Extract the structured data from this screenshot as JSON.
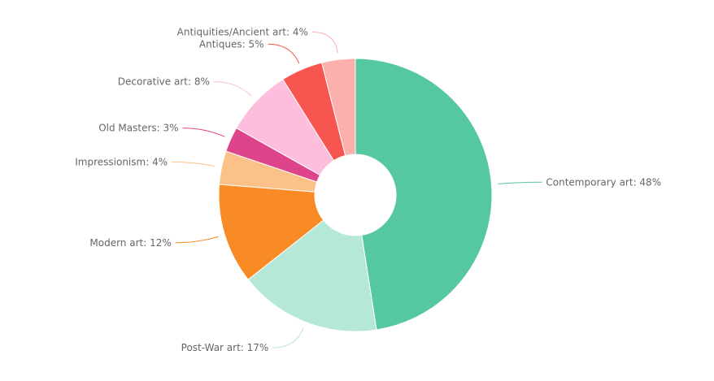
{
  "chart_data": {
    "type": "pie",
    "variant": "donut",
    "title": "",
    "start_angle_deg": 0,
    "direction": "clockwise",
    "slices": [
      {
        "name": "Contemporary art",
        "value": 48,
        "label": "Contemporary art: 48%",
        "color": "#56c8a0"
      },
      {
        "name": "Post-War art",
        "value": 17,
        "label": "Post-War art: 17%",
        "color": "#b5e8d8"
      },
      {
        "name": "Modern art",
        "value": 12,
        "label": "Modern art: 12%",
        "color": "#f98b26"
      },
      {
        "name": "Impressionism",
        "value": 4,
        "label": "Impressionism: 4%",
        "color": "#fcc089"
      },
      {
        "name": "Old Masters",
        "value": 3,
        "label": "Old Masters: 3%",
        "color": "#dd4489"
      },
      {
        "name": "Decorative art",
        "value": 8,
        "label": "Decorative art: 8%",
        "color": "#fdbddc"
      },
      {
        "name": "Antiques",
        "value": 5,
        "label": "Antiques: 5%",
        "color": "#f7554f"
      },
      {
        "name": "Antiquities/Ancient art",
        "value": 4,
        "label": "Antiquities/Ancient art: 4%",
        "color": "#fbb0ad"
      }
    ],
    "legend": "none",
    "label_color": "#666666"
  }
}
